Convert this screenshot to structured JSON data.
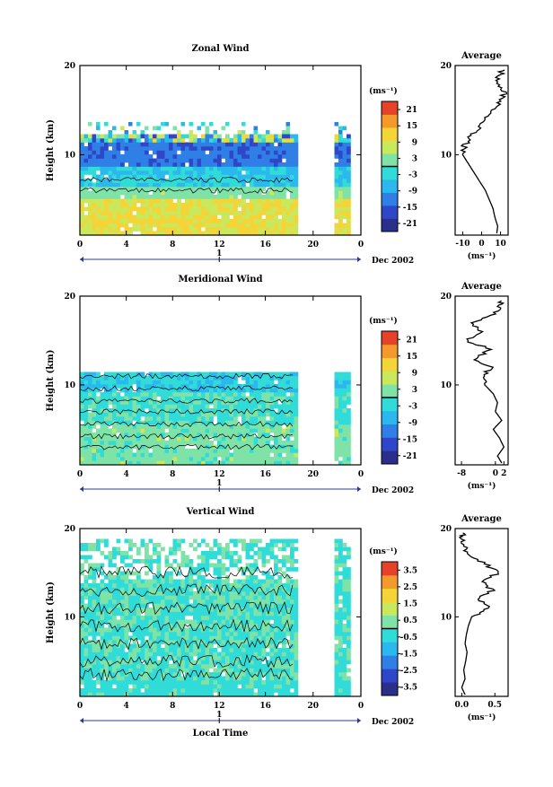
{
  "chart_data": [
    {
      "type": "heatmap",
      "title": "Zonal Wind",
      "ylabel": "Height (km)",
      "yticks": [
        "20",
        "10"
      ],
      "xticks": [
        "0",
        "4",
        "8",
        "12",
        "16",
        "20",
        "0"
      ],
      "date_label": "Dec 2002",
      "day_marker": "1",
      "colorbar": {
        "unit": "(ms⁻¹)",
        "ticks": [
          "21",
          "15",
          "9",
          "3",
          "-3",
          "-9",
          "-15",
          "-21"
        ],
        "range": [
          -24,
          24
        ]
      },
      "profile": {
        "title": "Average",
        "yticks": [
          "20",
          "10"
        ],
        "xticks": [
          "-10",
          "0",
          "10"
        ],
        "xlim": [
          -14,
          14
        ],
        "xlabel": "(ms⁻¹)",
        "height_km": [
          1.2,
          2,
          3,
          4,
          5,
          6,
          7,
          8,
          9,
          10,
          11,
          12,
          13,
          14,
          15,
          16,
          17,
          18,
          19,
          19.6
        ],
        "values": [
          8,
          8.5,
          7,
          6,
          4,
          2,
          -1,
          -4,
          -7,
          -10,
          -9,
          -6,
          -2,
          2,
          6,
          10,
          12,
          7,
          10,
          11
        ]
      }
    },
    {
      "type": "heatmap",
      "title": "Meridional Wind",
      "ylabel": "Height (km)",
      "yticks": [
        "20",
        "10"
      ],
      "xticks": [
        "0",
        "4",
        "8",
        "12",
        "16",
        "20",
        "0"
      ],
      "date_label": "Dec 2002",
      "day_marker": "1",
      "colorbar": {
        "unit": "(ms⁻¹)",
        "ticks": [
          "21",
          "15",
          "9",
          "3",
          "-3",
          "-9",
          "-15",
          "-21"
        ],
        "range": [
          -24,
          24
        ]
      },
      "profile": {
        "title": "Average",
        "yticks": [
          "20",
          "10"
        ],
        "xticks": [
          "-8",
          "0",
          "2"
        ],
        "xlim": [
          -9.5,
          3
        ],
        "xlabel": "(ms⁻¹)",
        "height_km": [
          1.2,
          2,
          3,
          4,
          5,
          6,
          7,
          8,
          9,
          10,
          11,
          12,
          13,
          14,
          15,
          16,
          17,
          18,
          19,
          19.6
        ],
        "values": [
          1.5,
          0.5,
          2,
          1,
          -0.5,
          1.5,
          0,
          0.5,
          -0.5,
          -2.5,
          -3,
          -1,
          -5,
          -1,
          -7,
          -3,
          -6,
          0,
          1,
          2
        ]
      }
    },
    {
      "type": "heatmap",
      "title": "Vertical Wind",
      "ylabel": "Height (km)",
      "xlabel": "Local Time",
      "yticks": [
        "20",
        "10"
      ],
      "xticks": [
        "0",
        "4",
        "8",
        "12",
        "16",
        "20",
        "0"
      ],
      "date_label": "Dec 2002",
      "day_marker": "1",
      "colorbar": {
        "unit": "(ms⁻¹)",
        "ticks": [
          "3.5",
          "2.5",
          "1.5",
          "0.5",
          "-0.5",
          "-1.5",
          "-2.5",
          "-3.5"
        ],
        "range": [
          -4,
          4
        ]
      },
      "profile": {
        "title": "Average",
        "yticks": [
          "20",
          "10"
        ],
        "xticks": [
          "0.0",
          "0.5"
        ],
        "xlim": [
          -0.1,
          0.7
        ],
        "xlabel": "(ms⁻¹)",
        "height_km": [
          1.2,
          2,
          3,
          4,
          5,
          6,
          7,
          8,
          9,
          10,
          11,
          12,
          13,
          14,
          15,
          16,
          17,
          18,
          19,
          19.6
        ],
        "values": [
          0.05,
          0.0,
          0.05,
          0.03,
          0.06,
          0.08,
          0.05,
          0.07,
          0.1,
          0.15,
          0.4,
          0.25,
          0.45,
          0.3,
          0.55,
          0.35,
          0.1,
          0.05,
          0.0,
          0.02
        ]
      }
    }
  ]
}
